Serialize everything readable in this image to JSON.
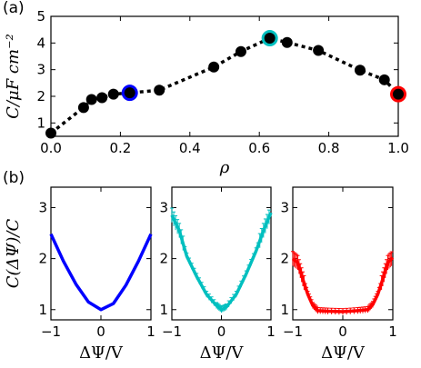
{
  "colors": {
    "marker": "#000000",
    "highlight_low": "#0000ff",
    "highlight_mid": "#00bfbf",
    "highlight_high": "#ff0000",
    "axis": "#000000"
  },
  "chart_data": [
    {
      "type": "scatter",
      "panel_label": "(a)",
      "xlabel": "ρ",
      "ylabel": "C/μF cm⁻²",
      "xlim": [
        0.0,
        1.0
      ],
      "ylim": [
        0.5,
        5.0
      ],
      "xticks": [
        "0.0",
        "0.2",
        "0.4",
        "0.6",
        "0.8",
        "1.0"
      ],
      "yticks": [
        "1",
        "2",
        "3",
        "4",
        "5"
      ],
      "line_style": "dotted",
      "grid": false,
      "legend": "none",
      "x": [
        0.0,
        0.094,
        0.117,
        0.147,
        0.18,
        0.227,
        0.312,
        0.469,
        0.547,
        0.63,
        0.68,
        0.77,
        0.89,
        0.96,
        1.0
      ],
      "y": [
        0.62,
        1.58,
        1.88,
        1.95,
        2.08,
        2.13,
        2.23,
        3.1,
        3.68,
        4.18,
        4.02,
        3.72,
        2.98,
        2.62,
        2.08
      ],
      "highlights": [
        {
          "x": 0.227,
          "y": 2.13,
          "color": "#0000ff"
        },
        {
          "x": 0.63,
          "y": 4.18,
          "color": "#00bfbf"
        },
        {
          "x": 1.0,
          "y": 2.08,
          "color": "#ff0000"
        }
      ]
    },
    {
      "type": "line",
      "panel_label": "(b)",
      "xlabel": "ΔΨ/V",
      "ylabel": "C(ΔΨ)/C",
      "xlim": [
        -1,
        1
      ],
      "ylim": [
        0.8,
        3.4
      ],
      "xticks": [
        "−1",
        "0",
        "1"
      ],
      "yticks": [
        "1",
        "2",
        "3"
      ],
      "series": [
        {
          "color": "#0000ff",
          "x": [
            -1.0,
            -0.75,
            -0.5,
            -0.25,
            0.0,
            0.25,
            0.5,
            0.75,
            1.0
          ],
          "y": [
            2.48,
            1.95,
            1.5,
            1.15,
            1.0,
            1.12,
            1.48,
            1.95,
            2.48
          ]
        },
        {
          "color": "#00bfbf",
          "x": [
            -1.0,
            -0.85,
            -0.7,
            -0.5,
            -0.3,
            -0.1,
            0.0,
            0.1,
            0.3,
            0.5,
            0.7,
            0.85,
            1.0
          ],
          "y": [
            2.85,
            2.55,
            2.05,
            1.65,
            1.3,
            1.08,
            1.0,
            1.05,
            1.3,
            1.7,
            2.15,
            2.55,
            2.9
          ],
          "error_bars": true
        },
        {
          "color": "#ff0000",
          "x": [
            -1.0,
            -0.9,
            -0.8,
            -0.7,
            -0.6,
            -0.5,
            -0.3,
            0.0,
            0.3,
            0.5,
            0.6,
            0.7,
            0.8,
            0.9,
            1.0
          ],
          "y": [
            2.0,
            1.92,
            1.6,
            1.3,
            1.08,
            0.98,
            0.97,
            0.96,
            0.98,
            1.0,
            1.1,
            1.3,
            1.6,
            1.92,
            2.02
          ],
          "error_bars": true
        }
      ]
    }
  ]
}
